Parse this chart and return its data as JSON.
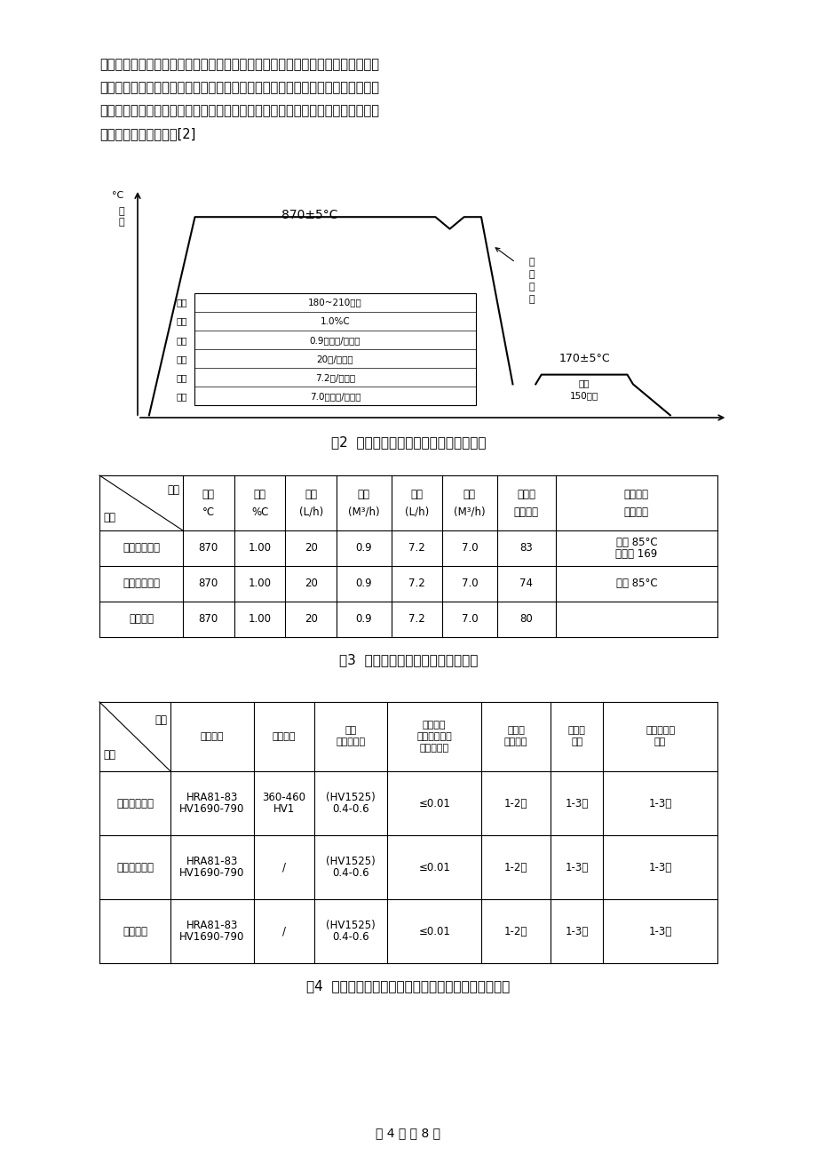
{
  "background_color": "#ffffff",
  "paragraph_lines": [
    "硬度，从表面至心部的硬度梯度分布也较为理想，特别是对于一、二档齿套，心部",
    "硬度也得到了可靠保证。工件表层组织为：极少量的呈细小弥散分布碳氮化合物、",
    "隐针状的马氏体和少量残余奥氏体，金相组织控制的较好。这说明了三种齿套热处",
    "理的质量是比较高的。[2]"
  ],
  "fig_caption": "图2  一、二档齿套碳氮共渗优化工艺曲线",
  "table3_caption": "表3  三种齿套碳氮共渗优化工艺参数",
  "table4_caption": "表4  三种齿套热处理后的硬度及金相组织实际测量结果",
  "page_footer": "第 4 页 共 8 页",
  "chart": {
    "high_temp": "870±5°C",
    "low_temp": "170±5°C",
    "quench_label_lines": [
      "压",
      "力",
      "淬",
      "火"
    ],
    "time_params": [
      [
        "时间",
        "180~210分钟"
      ],
      [
        "碳势",
        "1.0%C"
      ],
      [
        "丙烷",
        "0.9立方米/每小时"
      ],
      [
        "氨气",
        "20升/每小时"
      ],
      [
        "甲醇",
        "7.2升/每小时"
      ],
      [
        "氮气",
        "7.0立方米/每小时"
      ]
    ],
    "temper_lines": [
      "回火",
      "150分钟"
    ]
  },
  "table3_header_top": [
    "工艺",
    "温度",
    "碳势",
    "氨气",
    "丙烷",
    "甲醇",
    "氮气",
    "进料节",
    "淬火油型"
  ],
  "table3_header_bot": [
    "品种",
    "°C",
    "%C",
    "(L/h)",
    "(M³/h)",
    "(L/h)",
    "(M³/h)",
    "拍（秒）",
    "号和油温"
  ],
  "table3_rows": [
    [
      "一、二档齿套",
      "870",
      "1.00",
      "20",
      "0.9",
      "7.2",
      "7.0",
      "83",
      "德润宝 169\n油温 85°C"
    ],
    [
      "三、四档齿套",
      "870",
      "1.00",
      "20",
      "0.9",
      "7.2",
      "7.0",
      "74",
      "油温 85°C"
    ],
    [
      "五档齿套",
      "870",
      "1.00",
      "20",
      "0.9",
      "7.2",
      "7.0",
      "80",
      ""
    ]
  ],
  "table4_header": [
    "项目\n\n品种",
    "表面硬度",
    "心部硬度",
    "有效硬化层\n深度",
    "表层氧化组\n织、黑点、黑\n网、深度",
    "表层碳氮\n化合物",
    "表层\n马氏体",
    "表层\n残余奥氏体"
  ],
  "table4_rows": [
    [
      "一、二档齿套",
      "HV1690-790\nHRA81-83",
      "HV1\n360-460",
      "0.4-0.6\n(HV1525)",
      "≤0.01",
      "1-2级",
      "1-3级",
      "1-3级"
    ],
    [
      "三、四档齿套",
      "HV1690-790\nHRA81-83",
      "/",
      "0.4-0.6\n(HV1525)",
      "≤0.01",
      "1-2级",
      "1-3级",
      "1-3级"
    ],
    [
      "五档齿套",
      "HV1690-790\nHRA81-83",
      "/",
      "0.4-0.6\n(HV1525)",
      "≤0.01",
      "1-2级",
      "1-3级",
      "1-3级"
    ]
  ]
}
